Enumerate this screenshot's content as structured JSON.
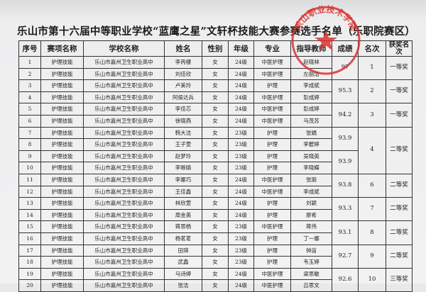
{
  "header": {
    "title": "乐山市第十六届中等职业学校“蓝鹰之星”文轩杯技能大赛参赛选手名单（乐职院赛区）"
  },
  "seal": {
    "text": "乐山职业技术学院"
  },
  "table": {
    "columns": [
      "序号",
      "赛项名称",
      "学校名称",
      "姓名",
      "性别",
      "年级",
      "专业",
      "指导教师",
      "成绩",
      "名次",
      "获奖名次"
    ],
    "rows": [
      {
        "cells": [
          1,
          "护理技能",
          "乐山市嘉州卫生职业高中",
          "李丙棲",
          "女",
          "24级",
          "中医护理",
          "赵晓林"
        ],
        "score": 97,
        "rank": 1,
        "award": "一等奖"
      },
      {
        "cells": [
          2,
          "护理技能",
          "乐山市嘉州卫生职业高中",
          "刘佳欣",
          "女",
          "24级",
          "中医护理",
          "左丽洁"
        ]
      },
      {
        "cells": [
          3,
          "护理技能",
          "乐山市嘉州卫生职业高中",
          "卢美玲",
          "女",
          "24级",
          "护理",
          "李成斌"
        ],
        "score": 95.3,
        "rank": 2,
        "award": "一等奖"
      },
      {
        "cells": [
          4,
          "护理技能",
          "乐山市嘉州卫生职业高中",
          "阿侯达兵",
          "女",
          "24级",
          "中医护理",
          "彭成婷"
        ]
      },
      {
        "cells": [
          5,
          "护理技能",
          "乐山市嘉州卫生职业高中",
          "李佳芯",
          "女",
          "24级",
          "中医护理",
          "彭成婷"
        ],
        "score": 94.2,
        "rank": 3,
        "award": "一等奖"
      },
      {
        "cells": [
          6,
          "护理技能",
          "乐山市嘉州卫生职业高中",
          "徐晓燕",
          "女",
          "24级",
          "中医护理",
          "马茂苏"
        ]
      },
      {
        "cells": [
          7,
          "护理技能",
          "乐山市嘉州卫生职业高中",
          "韩大洁",
          "女",
          "23级",
          "护理",
          "张娟"
        ],
        "score": 93.9,
        "rank": 4,
        "award": "二等奖"
      },
      {
        "cells": [
          8,
          "护理技能",
          "乐山市嘉州卫生职业高中",
          "王子萱",
          "女",
          "23级",
          "护理",
          "李碧婷"
        ]
      },
      {
        "cells": [
          9,
          "护理技能",
          "乐山市嘉州卫生职业高中",
          "赵梦玲",
          "女",
          "23级",
          "护理",
          "吴晓英"
        ],
        "score": 93.9
      },
      {
        "cells": [
          10,
          "护理技能",
          "乐山市嘉州卫生职业高中",
          "李晰婧",
          "女",
          "23级",
          "护理",
          "李晓蝶"
        ]
      },
      {
        "cells": [
          11,
          "护理技能",
          "乐山市嘉州卫生职业高中",
          "李娜巧",
          "女",
          "24级",
          "中医护理",
          "张丽"
        ],
        "score": 93.8,
        "rank": 6,
        "award": "二等奖"
      },
      {
        "cells": [
          12,
          "护理技能",
          "乐山市嘉州卫生职业高中",
          "王佳鑫",
          "女",
          "24级",
          "中医护理",
          "李成斌"
        ]
      },
      {
        "cells": [
          13,
          "护理技能",
          "乐山市嘉州卫生职业高中",
          "林欣萱",
          "女",
          "24级",
          "护理",
          "刘颖"
        ],
        "score": 93.3,
        "rank": 7,
        "award": "二等奖"
      },
      {
        "cells": [
          14,
          "护理技能",
          "乐山市嘉州卫生职业高中",
          "周金英",
          "女",
          "24级",
          "护理",
          "廖希"
        ]
      },
      {
        "cells": [
          15,
          "护理技能",
          "乐山市嘉州卫生职业高中",
          "蒋思杨",
          "女",
          "23级",
          "中医护理",
          "蒋伟"
        ],
        "score": 93.1,
        "rank": 8,
        "award": "二等奖"
      },
      {
        "cells": [
          16,
          "护理技能",
          "乐山市嘉州卫生职业高中",
          "杨茗茗",
          "女",
          "23级",
          "护理",
          "丁一娜"
        ]
      },
      {
        "cells": [
          17,
          "护理技能",
          "乐山市嘉州卫生职业高中",
          "田琪",
          "女",
          "23级",
          "护理",
          "钟亩"
        ],
        "score": 92.7,
        "rank": 9,
        "award": "二等奖"
      },
      {
        "cells": [
          18,
          "护理技能",
          "乐山市嘉州卫生职业高中",
          "武鑫",
          "女",
          "23级",
          "护理",
          "韦玉婷"
        ]
      },
      {
        "cells": [
          19,
          "护理技能",
          "乐山市嘉州卫生职业高中",
          "马诗婷",
          "女",
          "24级",
          "中医护理",
          "梁思敏"
        ],
        "score": 92.6,
        "rank": 10,
        "award": "三等奖"
      },
      {
        "cells": [
          20,
          "护理技能",
          "乐山市嘉州卫生职业高中",
          "张洁",
          "女",
          "24级",
          "中医护理",
          "吕思文"
        ]
      }
    ]
  }
}
